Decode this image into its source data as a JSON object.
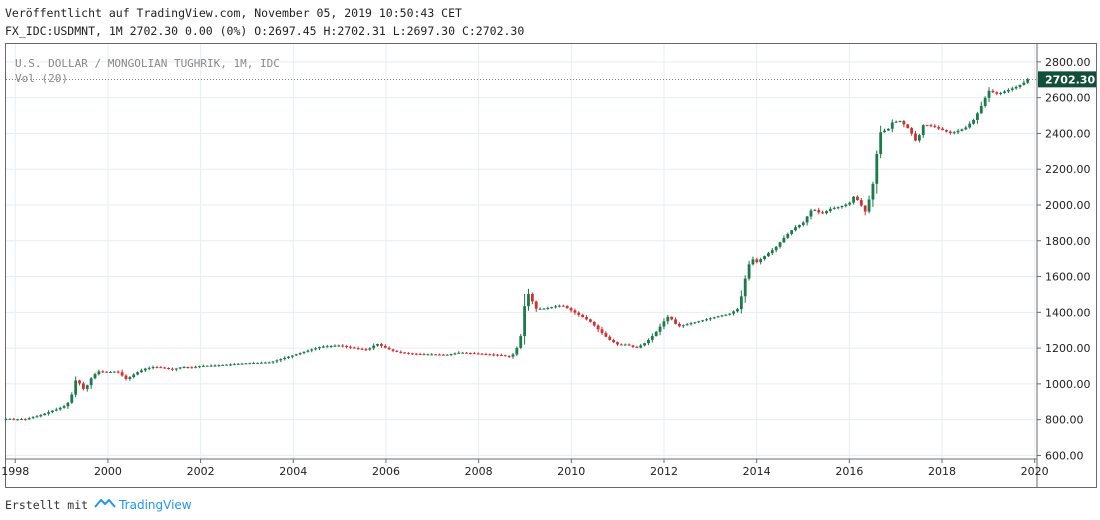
{
  "header": {
    "published": "Veröffentlicht auf TradingView.com, November 05, 2019 10:50:43 CET",
    "symbol_line": "FX_IDC:USDMNT, 1M 2702.30 0.00 (0%) O:2697.45 H:2702.31 L:2697.30 C:2702.30"
  },
  "footer": {
    "created_with": "Erstellt mit",
    "brand": "TradingView"
  },
  "colors": {
    "up": "#1a7a48",
    "down": "#d32f2f",
    "grid": "#e6eef3",
    "badge": "#124f3a",
    "axis_text": "#222222"
  },
  "chart_data": {
    "type": "candlestick",
    "title": "U.S. DOLLAR / MONGOLIAN TUGHRIK, 1M, IDC",
    "indicator": "Vol (20)",
    "last_price": 2702.3,
    "last_price_label": "2702.30",
    "x_range": [
      1997.8,
      2020.05
    ],
    "ylim": [
      580,
      2900
    ],
    "x_ticks": [
      {
        "value": 1998,
        "label": "1998"
      },
      {
        "value": 2000,
        "label": "2000"
      },
      {
        "value": 2002,
        "label": "2002"
      },
      {
        "value": 2004,
        "label": "2004"
      },
      {
        "value": 2006,
        "label": "2006"
      },
      {
        "value": 2008,
        "label": "2008"
      },
      {
        "value": 2010,
        "label": "2010"
      },
      {
        "value": 2012,
        "label": "2012"
      },
      {
        "value": 2014,
        "label": "2014"
      },
      {
        "value": 2016,
        "label": "2016"
      },
      {
        "value": 2018,
        "label": "2018"
      },
      {
        "value": 2020,
        "label": "2020"
      }
    ],
    "y_ticks": [
      {
        "value": 600,
        "label": "600.00"
      },
      {
        "value": 800,
        "label": "800.00"
      },
      {
        "value": 1000,
        "label": "1000.00"
      },
      {
        "value": 1200,
        "label": "1200.00"
      },
      {
        "value": 1400,
        "label": "1400.00"
      },
      {
        "value": 1600,
        "label": "1600.00"
      },
      {
        "value": 1800,
        "label": "1800.00"
      },
      {
        "value": 2000,
        "label": "2000.00"
      },
      {
        "value": 2200,
        "label": "2200.00"
      },
      {
        "value": 2400,
        "label": "2400.00"
      },
      {
        "value": 2600,
        "label": "2600.00"
      },
      {
        "value": 2800,
        "label": "2800.00"
      }
    ],
    "closes": [
      [
        1997.8,
        803
      ],
      [
        1997.9,
        805
      ],
      [
        1998.0,
        800
      ],
      [
        1998.1,
        805
      ],
      [
        1998.2,
        800
      ],
      [
        1998.3,
        808
      ],
      [
        1998.4,
        815
      ],
      [
        1998.5,
        820
      ],
      [
        1998.6,
        830
      ],
      [
        1998.7,
        840
      ],
      [
        1998.8,
        850
      ],
      [
        1998.9,
        858
      ],
      [
        1999.0,
        870
      ],
      [
        1999.1,
        880
      ],
      [
        1999.2,
        920
      ],
      [
        1999.3,
        1020
      ],
      [
        1999.4,
        1000
      ],
      [
        1999.5,
        960
      ],
      [
        1999.6,
        1020
      ],
      [
        1999.7,
        1050
      ],
      [
        1999.8,
        1070
      ],
      [
        2000.0,
        1065
      ],
      [
        2000.2,
        1070
      ],
      [
        2000.4,
        1025
      ],
      [
        2000.6,
        1060
      ],
      [
        2000.8,
        1085
      ],
      [
        2001.0,
        1095
      ],
      [
        2001.2,
        1090
      ],
      [
        2001.4,
        1080
      ],
      [
        2001.6,
        1095
      ],
      [
        2001.8,
        1092
      ],
      [
        2002.0,
        1100
      ],
      [
        2002.3,
        1103
      ],
      [
        2002.6,
        1108
      ],
      [
        2003.0,
        1115
      ],
      [
        2003.5,
        1120
      ],
      [
        2004.0,
        1160
      ],
      [
        2004.3,
        1185
      ],
      [
        2004.6,
        1208
      ],
      [
        2005.0,
        1215
      ],
      [
        2005.3,
        1200
      ],
      [
        2005.6,
        1190
      ],
      [
        2005.8,
        1225
      ],
      [
        2006.0,
        1200
      ],
      [
        2006.2,
        1180
      ],
      [
        2006.5,
        1170
      ],
      [
        2006.8,
        1165
      ],
      [
        2007.0,
        1165
      ],
      [
        2007.3,
        1162
      ],
      [
        2007.6,
        1175
      ],
      [
        2007.9,
        1170
      ],
      [
        2008.2,
        1165
      ],
      [
        2008.5,
        1160
      ],
      [
        2008.7,
        1150
      ],
      [
        2008.8,
        1185
      ],
      [
        2008.9,
        1250
      ],
      [
        2009.0,
        1450
      ],
      [
        2009.1,
        1520
      ],
      [
        2009.2,
        1420
      ],
      [
        2009.4,
        1420
      ],
      [
        2009.6,
        1430
      ],
      [
        2009.8,
        1440
      ],
      [
        2010.0,
        1410
      ],
      [
        2010.2,
        1380
      ],
      [
        2010.4,
        1350
      ],
      [
        2010.6,
        1300
      ],
      [
        2010.8,
        1250
      ],
      [
        2011.0,
        1220
      ],
      [
        2011.2,
        1220
      ],
      [
        2011.4,
        1200
      ],
      [
        2011.6,
        1230
      ],
      [
        2011.8,
        1280
      ],
      [
        2012.0,
        1350
      ],
      [
        2012.1,
        1380
      ],
      [
        2012.3,
        1320
      ],
      [
        2012.6,
        1340
      ],
      [
        2012.9,
        1360
      ],
      [
        2013.2,
        1380
      ],
      [
        2013.4,
        1390
      ],
      [
        2013.6,
        1420
      ],
      [
        2013.7,
        1520
      ],
      [
        2013.8,
        1650
      ],
      [
        2013.9,
        1700
      ],
      [
        2014.0,
        1680
      ],
      [
        2014.2,
        1720
      ],
      [
        2014.4,
        1760
      ],
      [
        2014.6,
        1820
      ],
      [
        2014.8,
        1870
      ],
      [
        2015.0,
        1900
      ],
      [
        2015.2,
        1980
      ],
      [
        2015.4,
        1950
      ],
      [
        2015.6,
        1980
      ],
      [
        2015.8,
        1990
      ],
      [
        2016.0,
        2010
      ],
      [
        2016.1,
        2050
      ],
      [
        2016.2,
        2020
      ],
      [
        2016.35,
        1960
      ],
      [
        2016.5,
        2100
      ],
      [
        2016.6,
        2300
      ],
      [
        2016.7,
        2440
      ],
      [
        2016.8,
        2400
      ],
      [
        2016.9,
        2460
      ],
      [
        2017.1,
        2470
      ],
      [
        2017.3,
        2420
      ],
      [
        2017.45,
        2350
      ],
      [
        2017.6,
        2450
      ],
      [
        2017.8,
        2440
      ],
      [
        2018.0,
        2420
      ],
      [
        2018.2,
        2400
      ],
      [
        2018.5,
        2430
      ],
      [
        2018.7,
        2480
      ],
      [
        2018.9,
        2580
      ],
      [
        2019.0,
        2640
      ],
      [
        2019.2,
        2620
      ],
      [
        2019.4,
        2640
      ],
      [
        2019.6,
        2660
      ],
      [
        2019.75,
        2680
      ],
      [
        2019.85,
        2702.3
      ]
    ]
  }
}
